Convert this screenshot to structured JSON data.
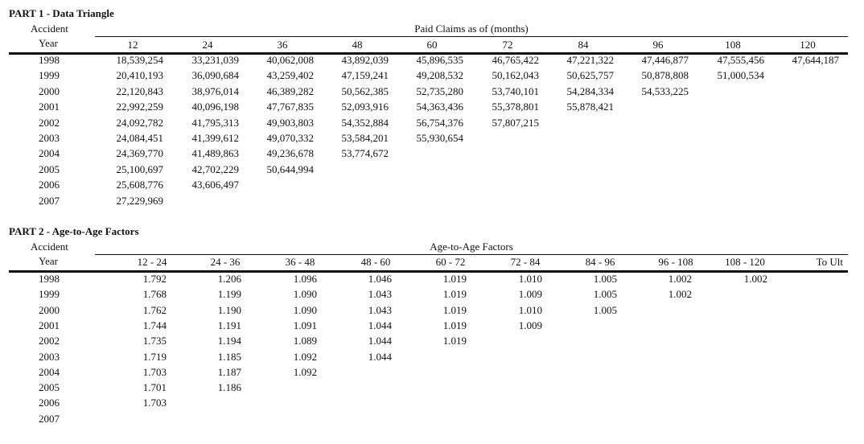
{
  "part1": {
    "title": "PART 1 - Data Triangle",
    "row_header_line1": "Accident",
    "row_header_line2": "Year",
    "group_title": "Paid Claims as of (months)",
    "columns": [
      "12",
      "24",
      "36",
      "48",
      "60",
      "72",
      "84",
      "96",
      "108",
      "120"
    ],
    "rows": [
      {
        "year": "1998",
        "values": [
          "18,539,254",
          "33,231,039",
          "40,062,008",
          "43,892,039",
          "45,896,535",
          "46,765,422",
          "47,221,322",
          "47,446,877",
          "47,555,456",
          "47,644,187"
        ]
      },
      {
        "year": "1999",
        "values": [
          "20,410,193",
          "36,090,684",
          "43,259,402",
          "47,159,241",
          "49,208,532",
          "50,162,043",
          "50,625,757",
          "50,878,808",
          "51,000,534"
        ]
      },
      {
        "year": "2000",
        "values": [
          "22,120,843",
          "38,976,014",
          "46,389,282",
          "50,562,385",
          "52,735,280",
          "53,740,101",
          "54,284,334",
          "54,533,225"
        ]
      },
      {
        "year": "2001",
        "values": [
          "22,992,259",
          "40,096,198",
          "47,767,835",
          "52,093,916",
          "54,363,436",
          "55,378,801",
          "55,878,421"
        ]
      },
      {
        "year": "2002",
        "values": [
          "24,092,782",
          "41,795,313",
          "49,903,803",
          "54,352,884",
          "56,754,376",
          "57,807,215"
        ]
      },
      {
        "year": "2003",
        "values": [
          "24,084,451",
          "41,399,612",
          "49,070,332",
          "53,584,201",
          "55,930,654"
        ]
      },
      {
        "year": "2004",
        "values": [
          "24,369,770",
          "41,489,863",
          "49,236,678",
          "53,774,672"
        ]
      },
      {
        "year": "2005",
        "values": [
          "25,100,697",
          "42,702,229",
          "50,644,994"
        ]
      },
      {
        "year": "2006",
        "values": [
          "25,608,776",
          "43,606,497"
        ]
      },
      {
        "year": "2007",
        "values": [
          "27,229,969"
        ]
      }
    ]
  },
  "part2": {
    "title": "PART 2 - Age-to-Age Factors",
    "row_header_line1": "Accident",
    "row_header_line2": "Year",
    "group_title": "Age-to-Age Factors",
    "columns": [
      "12 - 24",
      "24 - 36",
      "36 - 48",
      "48 - 60",
      "60 - 72",
      "72 - 84",
      "84 - 96",
      "96 - 108",
      "108 - 120",
      "To Ult"
    ],
    "rows": [
      {
        "year": "1998",
        "values": [
          "1.792",
          "1.206",
          "1.096",
          "1.046",
          "1.019",
          "1.010",
          "1.005",
          "1.002",
          "1.002"
        ]
      },
      {
        "year": "1999",
        "values": [
          "1.768",
          "1.199",
          "1.090",
          "1.043",
          "1.019",
          "1.009",
          "1.005",
          "1.002"
        ]
      },
      {
        "year": "2000",
        "values": [
          "1.762",
          "1.190",
          "1.090",
          "1.043",
          "1.019",
          "1.010",
          "1.005"
        ]
      },
      {
        "year": "2001",
        "values": [
          "1.744",
          "1.191",
          "1.091",
          "1.044",
          "1.019",
          "1.009"
        ]
      },
      {
        "year": "2002",
        "values": [
          "1.735",
          "1.194",
          "1.089",
          "1.044",
          "1.019"
        ]
      },
      {
        "year": "2003",
        "values": [
          "1.719",
          "1.185",
          "1.092",
          "1.044"
        ]
      },
      {
        "year": "2004",
        "values": [
          "1.703",
          "1.187",
          "1.092"
        ]
      },
      {
        "year": "2005",
        "values": [
          "1.701",
          "1.186"
        ]
      },
      {
        "year": "2006",
        "values": [
          "1.703"
        ]
      },
      {
        "year": "2007",
        "values": []
      }
    ]
  }
}
